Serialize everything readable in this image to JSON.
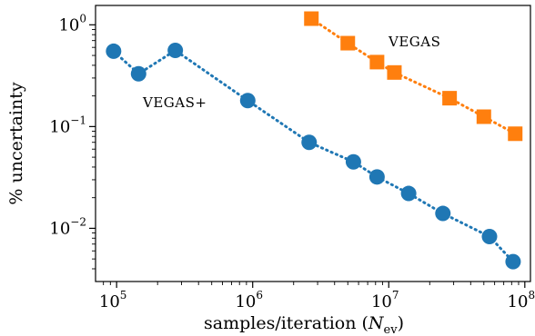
{
  "chart_data": {
    "type": "scatter",
    "xscale": "log",
    "yscale": "log",
    "xlim": [
      70000,
      110000000
    ],
    "ylim": [
      0.003,
      1.55
    ],
    "xlabel": "samples/iteration (N_ev)",
    "xlabel_parts": {
      "prefix": "samples/iteration (",
      "var": "N",
      "sub": "ev",
      "suffix": ")"
    },
    "ylabel": "% uncertainty",
    "x_ticks": [
      {
        "value": 100000,
        "base": "10",
        "exp": "5"
      },
      {
        "value": 1000000,
        "base": "10",
        "exp": "6"
      },
      {
        "value": 10000000,
        "base": "10",
        "exp": "7"
      },
      {
        "value": 100000000,
        "base": "10",
        "exp": "8"
      }
    ],
    "y_ticks": [
      {
        "value": 1,
        "base": "10",
        "exp": "0"
      },
      {
        "value": 0.1,
        "base": "10",
        "exp": "−1"
      },
      {
        "value": 0.01,
        "base": "10",
        "exp": "−2"
      }
    ],
    "grid": false,
    "legend": "none",
    "series": [
      {
        "name": "VEGAS+",
        "color": "#1f77b4",
        "marker": "circle",
        "line": "dotted",
        "points": [
          {
            "x": 95000,
            "y": 0.55
          },
          {
            "x": 145000,
            "y": 0.33
          },
          {
            "x": 270000,
            "y": 0.56
          },
          {
            "x": 920000,
            "y": 0.18
          },
          {
            "x": 2600000,
            "y": 0.07
          },
          {
            "x": 5500000,
            "y": 0.045
          },
          {
            "x": 8200000,
            "y": 0.032
          },
          {
            "x": 14000000,
            "y": 0.022
          },
          {
            "x": 25000000,
            "y": 0.014
          },
          {
            "x": 55000000,
            "y": 0.0083
          },
          {
            "x": 82000000,
            "y": 0.0047
          }
        ]
      },
      {
        "name": "VEGAS",
        "color": "#ff7f0e",
        "marker": "square",
        "line": "dotted",
        "points": [
          {
            "x": 2700000,
            "y": 1.15
          },
          {
            "x": 5000000,
            "y": 0.66
          },
          {
            "x": 8200000,
            "y": 0.43
          },
          {
            "x": 11000000,
            "y": 0.34
          },
          {
            "x": 28000000,
            "y": 0.19
          },
          {
            "x": 50000000,
            "y": 0.125
          },
          {
            "x": 85000000,
            "y": 0.085
          }
        ]
      }
    ]
  }
}
